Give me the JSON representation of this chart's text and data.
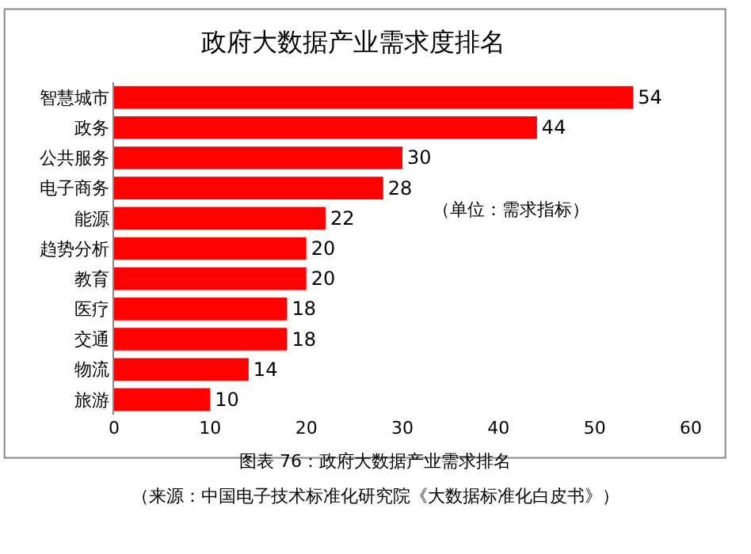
{
  "chart_data": {
    "type": "bar",
    "orientation": "horizontal",
    "title": "政府大数据产业需求度排名",
    "categories": [
      "智慧城市",
      "政务",
      "公共服务",
      "电子商务",
      "能源",
      "趋势分析",
      "教育",
      "医疗",
      "交通",
      "物流",
      "旅游"
    ],
    "values": [
      54,
      44,
      30,
      28,
      22,
      20,
      20,
      18,
      18,
      14,
      10
    ],
    "color": "#ff0000",
    "xlim": [
      0,
      60
    ],
    "xticks": [
      0,
      10,
      20,
      30,
      40,
      50,
      60
    ],
    "data_labels": true,
    "annotations": [
      "（单位：需求指标）",
      "图表 76：政府大数据产业需求排名",
      "（来源：中国电子技术标准化研究院《大数据标准化白皮书》）"
    ]
  }
}
